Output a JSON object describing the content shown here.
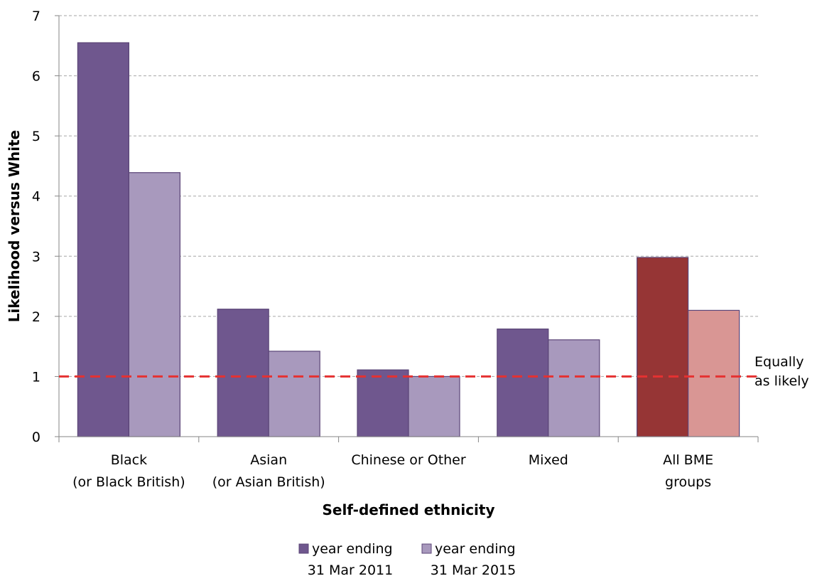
{
  "chart_data": {
    "type": "bar",
    "title": "",
    "xlabel": "Self-defined ethnicity",
    "ylabel": "Likelihood versus White",
    "ylim": [
      0,
      7
    ],
    "yticks": [
      0,
      1,
      2,
      3,
      4,
      5,
      6,
      7
    ],
    "grid": true,
    "legend_position": "bottom",
    "categories": [
      [
        "Black",
        "(or Black British)"
      ],
      [
        "Asian",
        "(or Asian British)"
      ],
      [
        "Chinese or Other"
      ],
      [
        "Mixed"
      ],
      [
        "All BME",
        "groups"
      ]
    ],
    "series": [
      {
        "name": [
          "year ending",
          "31 Mar 2011"
        ],
        "color": "#6f578e",
        "values": [
          6.55,
          2.12,
          1.11,
          1.79,
          2.98
        ],
        "highlight_color": "#963535"
      },
      {
        "name": [
          "year ending",
          "31 Mar 2015"
        ],
        "color": "#a899bd",
        "values": [
          4.39,
          1.42,
          1.0,
          1.61,
          2.1
        ],
        "highlight_color": "#d99694"
      }
    ],
    "highlight_category_index": 4,
    "reference_line": {
      "value": 1,
      "label": [
        "Equally",
        "as likely"
      ],
      "color": "#e53131",
      "style": "dashed"
    }
  }
}
